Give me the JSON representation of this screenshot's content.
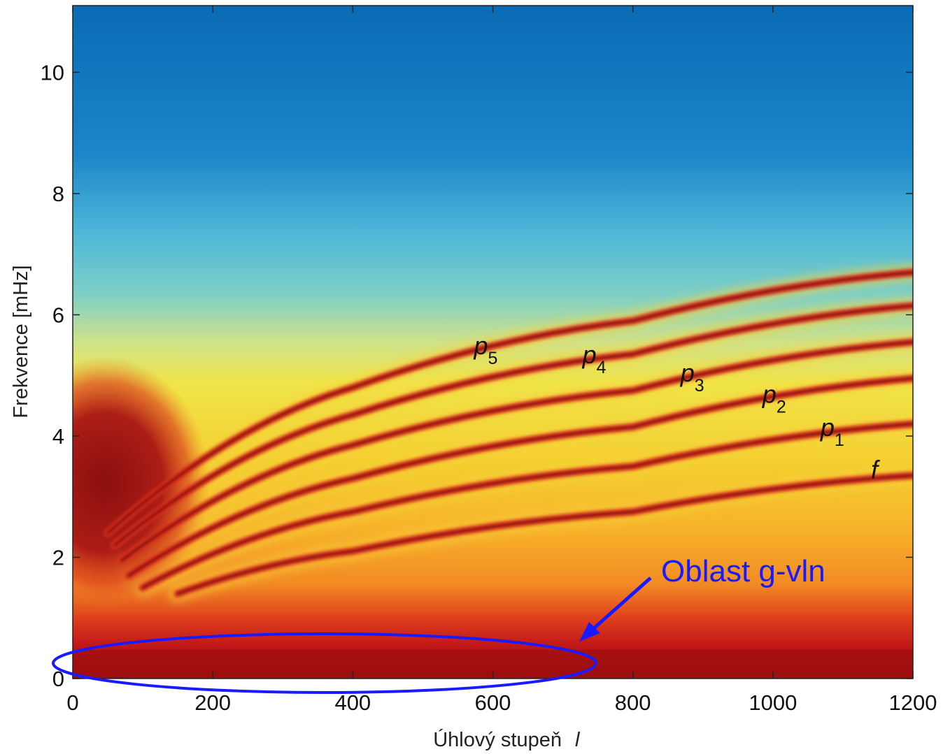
{
  "chart_data": {
    "type": "heatmap",
    "title": "",
    "xlabel": "Úhlový stupeň",
    "xlabel_symbol": "l",
    "ylabel": "Frekvence [mHz]",
    "xlim": [
      0,
      1200
    ],
    "ylim": [
      0,
      11.1
    ],
    "xticks": [
      0,
      200,
      400,
      600,
      800,
      1000,
      1200
    ],
    "yticks": [
      0,
      2,
      4,
      6,
      8,
      10
    ],
    "grid": false,
    "colormap": "jet (dark red = high power, blue = low power)",
    "ridges": [
      {
        "name": "f",
        "l": [
          150,
          400,
          800,
          1200
        ],
        "freq_mHz": [
          1.4,
          2.1,
          2.75,
          3.35
        ]
      },
      {
        "name": "p1",
        "l": [
          100,
          400,
          800,
          1200
        ],
        "freq_mHz": [
          1.5,
          2.75,
          3.5,
          4.2
        ]
      },
      {
        "name": "p2",
        "l": [
          80,
          400,
          800,
          1200
        ],
        "freq_mHz": [
          1.7,
          3.3,
          4.15,
          4.95
        ]
      },
      {
        "name": "p3",
        "l": [
          70,
          400,
          800,
          1200
        ],
        "freq_mHz": [
          1.95,
          3.85,
          4.75,
          5.55
        ]
      },
      {
        "name": "p4",
        "l": [
          60,
          400,
          800,
          1200
        ],
        "freq_mHz": [
          2.2,
          4.35,
          5.35,
          6.15
        ]
      },
      {
        "name": "p5",
        "l": [
          50,
          400,
          800,
          1200
        ],
        "freq_mHz": [
          2.4,
          4.8,
          5.9,
          6.7
        ]
      }
    ],
    "mode_labels": [
      {
        "base": "p",
        "sub": "5",
        "l": 573,
        "freq": 5.35
      },
      {
        "base": "p",
        "sub": "4",
        "l": 728,
        "freq": 5.2
      },
      {
        "base": "p",
        "sub": "3",
        "l": 868,
        "freq": 4.9
      },
      {
        "base": "p",
        "sub": "2",
        "l": 985,
        "freq": 4.55
      },
      {
        "base": "p",
        "sub": "1",
        "l": 1068,
        "freq": 4.0
      },
      {
        "base": "f",
        "sub": "",
        "l": 1140,
        "freq": 3.3
      }
    ],
    "annotation": {
      "text": "Oblast g-vln",
      "color": "#1a1aff",
      "region_l": [
        0,
        750
      ],
      "region_freq": [
        0,
        0.75
      ]
    }
  }
}
